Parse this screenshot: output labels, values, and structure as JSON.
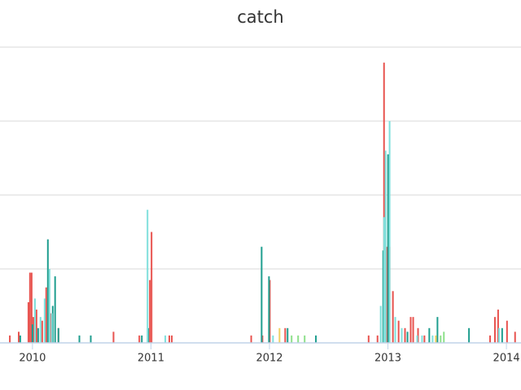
{
  "chart_data": {
    "type": "bar",
    "title": "catch",
    "xlim": [
      2009.726,
      2014.123
    ],
    "xticks": [
      2010,
      2011,
      2012,
      2013,
      2014
    ],
    "ylim": [
      0,
      4
    ],
    "yticks": [
      0,
      1,
      2,
      3,
      4
    ],
    "grid": true,
    "series": [
      {
        "color": "#e8534f",
        "x": [
          2009.809,
          2009.884,
          2009.966,
          2009.979,
          2009.993,
          2010.007,
          2010.034,
          2010.082,
          2010.116,
          2010.15,
          2010.219,
          2010.684,
          2010.902,
          2010.991,
          2011.005,
          2011.155,
          2011.176,
          2011.846,
          2011.941,
          2012.003,
          2012.133,
          2012.837,
          2012.912,
          2012.967,
          2012.994,
          2013.014,
          2013.042,
          2013.09,
          2013.144,
          2013.192,
          2013.213,
          2013.254,
          2013.308,
          2013.862,
          2013.903,
          2013.93,
          2014.005,
          2014.073
        ],
        "values": [
          0.1,
          0.15,
          0.55,
          0.95,
          0.95,
          0.35,
          0.45,
          0.3,
          0.75,
          0.4,
          0.2,
          0.15,
          0.1,
          0.85,
          1.5,
          0.1,
          0.1,
          0.1,
          0.1,
          0.85,
          0.2,
          0.1,
          0.1,
          3.79,
          1.3,
          1.3,
          0.7,
          0.3,
          0.2,
          0.35,
          0.35,
          0.2,
          0.1,
          0.1,
          0.35,
          0.45,
          0.3,
          0.15
        ]
      },
      {
        "color": "#1f9e8f",
        "x": [
          2009.897,
          2010.0,
          2010.048,
          2010.13,
          2010.171,
          2010.191,
          2010.219,
          2010.396,
          2010.492,
          2010.923,
          2010.977,
          2011.934,
          2011.996,
          2012.153,
          2012.392,
          2012.96,
          2013.001,
          2013.165,
          2013.349,
          2013.418,
          2013.684,
          2013.964
        ],
        "values": [
          0.1,
          0.25,
          0.2,
          1.4,
          0.5,
          0.9,
          0.2,
          0.1,
          0.1,
          0.1,
          0.2,
          1.3,
          0.9,
          0.2,
          0.1,
          1.25,
          2.55,
          0.15,
          0.2,
          0.35,
          0.2,
          0.2
        ]
      },
      {
        "color": "#7fe0dc",
        "x": [
          2010.021,
          2010.068,
          2010.103,
          2010.144,
          2010.164,
          2010.971,
          2011.121,
          2012.03,
          2012.939,
          2012.967,
          2012.98,
          2013.014,
          2013.062,
          2013.117,
          2013.247,
          2013.288,
          2013.377,
          2013.937
        ],
        "values": [
          0.6,
          0.35,
          0.6,
          1.0,
          0.4,
          1.8,
          0.1,
          0.1,
          0.5,
          1.7,
          2.6,
          3.0,
          0.35,
          0.2,
          0.1,
          0.1,
          0.1,
          0.2
        ]
      },
      {
        "color": "#8de08a",
        "x": [
          2012.187,
          2012.242,
          2012.297,
          2013.445,
          2013.472
        ],
        "values": [
          0.1,
          0.1,
          0.1,
          0.1,
          0.15
        ]
      },
      {
        "color": "#f0d060",
        "x": [
          2012.085,
          2013.404
        ],
        "values": [
          0.2,
          0.1
        ]
      }
    ]
  }
}
